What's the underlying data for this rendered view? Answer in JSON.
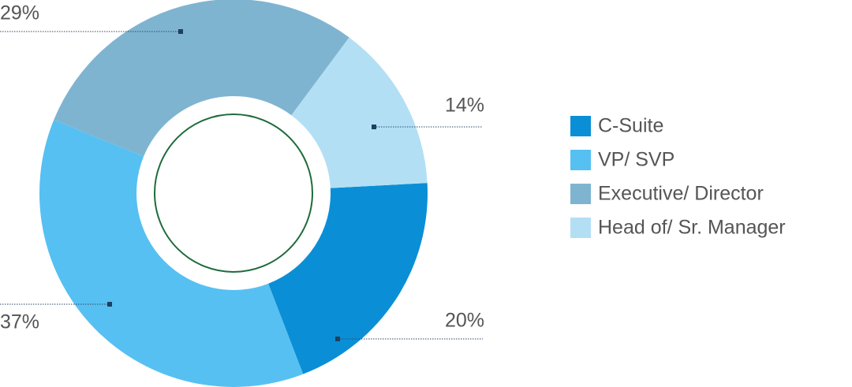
{
  "chart_data": {
    "type": "donut",
    "categories": [
      "C-Suite",
      "VP/ SVP",
      "Executive/ Director",
      "Head of/ Sr. Manager"
    ],
    "values": [
      20,
      37,
      29,
      14
    ],
    "value_labels": [
      "20%",
      "37%",
      "29%",
      "14%"
    ],
    "colors": [
      "#0a8fd6",
      "#56c0f2",
      "#7fb4d1",
      "#b3dff5"
    ],
    "legend": "right"
  }
}
